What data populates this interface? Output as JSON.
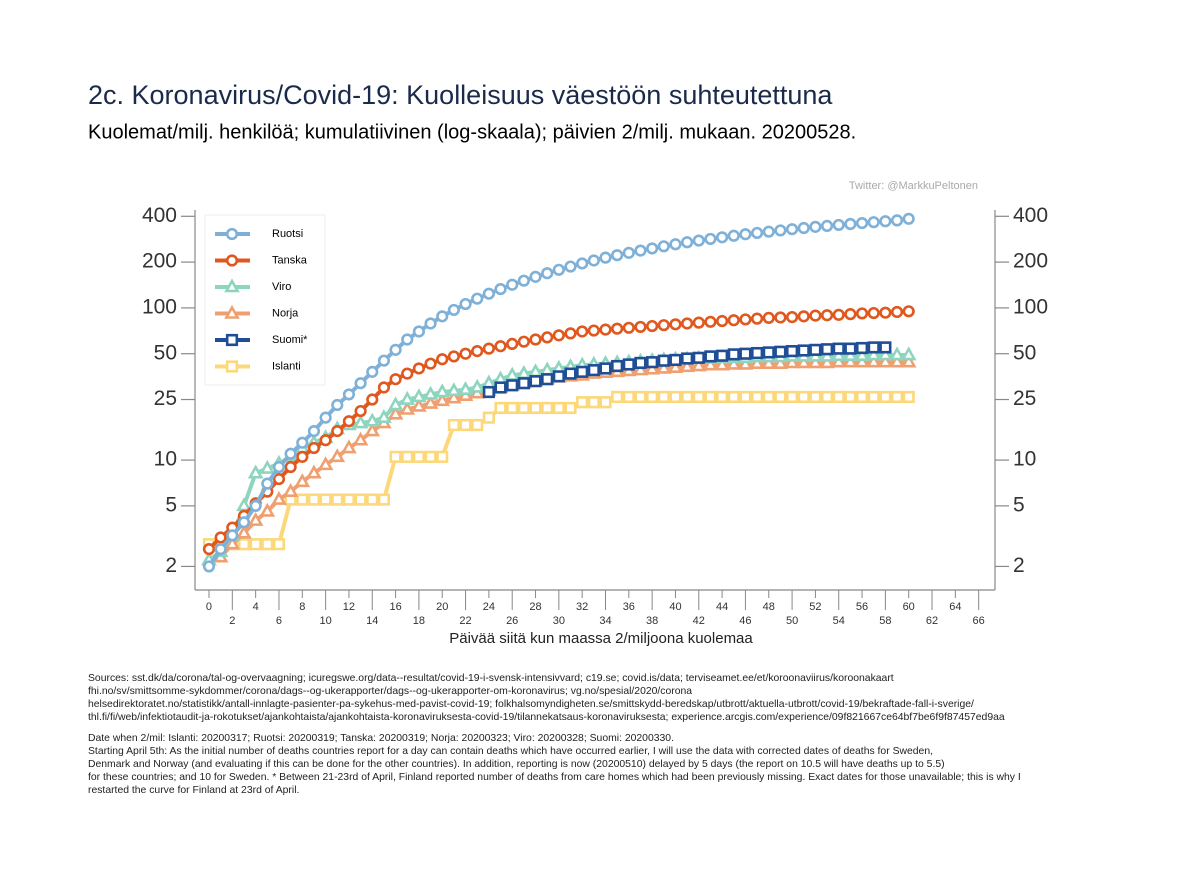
{
  "chart_data": {
    "type": "line",
    "title": "2c. Koronavirus/Covid-19: Kuolleisuus väestöön suhteutettuna",
    "subtitle": "Kuolemat/milj. henkilöä; kumulatiivinen (log-skaala); päivien 2/milj. mukaan. 20200528.",
    "credit": "Twitter: @MarkkuPeltonen",
    "x_label": "Päivää siitä kun maassa 2/miljoona kuolemaa",
    "notes": [
      "Sources: sst.dk/da/corona/tal-og-overvaagning; icuregswe.org/data--resultat/covid-19-i-svensk-intensivvard; c19.se; covid.is/data;  terviseamet.ee/et/koroonaviirus/koroonakaart",
      "fhi.no/sv/smittsomme-sykdommer/corona/dags--og-ukerapporter/dags--og-ukerapporter-om-koronavirus; vg.no/spesial/2020/corona",
      "helsedirektoratet.no/statistikk/antall-innlagte-pasienter-pa-sykehus-med-pavist-covid-19; folkhalsomyndigheten.se/smittskydd-beredskap/utbrott/aktuella-utbrott/covid-19/bekraftade-fall-i-sverige/",
      "thl.fi/fi/web/infektiotaudit-ja-rokotukset/ajankohtaista/ajankohtaista-koronaviruksesta-covid-19/tilannekatsaus-koronaviruksesta; experience.arcgis.com/experience/09f821667ce64bf7be6f9f87457ed9aa",
      "Date when 2/mil: Islanti: 20200317; Ruotsi: 20200319; Tanska: 20200319; Norja: 20200323; Viro: 20200328; Suomi: 20200330.",
      "Starting April 5th: As the initial number of deaths countries report for a day can contain deaths which have occurred earlier, I will use the data with corrected dates of deaths for Sweden,",
      "Denmark and Norway (and evaluating if this can be done for the other countries). In addition, reporting is now (20200510) delayed by 5 days (the report on 10.5 will have deaths up to 5.5)",
      "for these countries; and 10 for Sweden. * Between 21-23rd of April, Finland reported number of deaths from care homes which had been previously missing. Exact dates for those unavailable; this is why I",
      "restarted the curve for Finland at 23rd of April."
    ],
    "ylog": true,
    "grid": false,
    "legend": "upper left",
    "xlim": [
      -1.2,
      67.4
    ],
    "xticks": [
      0,
      2,
      4,
      6,
      8,
      10,
      12,
      14,
      16,
      18,
      20,
      22,
      24,
      26,
      28,
      30,
      32,
      34,
      36,
      38,
      40,
      42,
      44,
      46,
      48,
      50,
      52,
      54,
      56,
      58,
      60,
      62,
      64,
      66
    ],
    "ylim": [
      1.4,
      440
    ],
    "yticks": [
      2,
      5,
      10,
      25,
      50,
      100,
      200,
      400
    ],
    "x": [
      0,
      1,
      2,
      3,
      4,
      5,
      6,
      7,
      8,
      9,
      10,
      11,
      12,
      13,
      14,
      15,
      16,
      17,
      18,
      19,
      20,
      21,
      22,
      23,
      24,
      25,
      26,
      27,
      28,
      29,
      30,
      31,
      32,
      33,
      34,
      35,
      36,
      37,
      38,
      39,
      40,
      41,
      42,
      43,
      44,
      45,
      46,
      47,
      48,
      49,
      50,
      51,
      52,
      53,
      54,
      55,
      56,
      57,
      58,
      59,
      60
    ],
    "series": [
      {
        "name": "Ruotsi",
        "color": "#7fb1d8",
        "marker": "circle",
        "values": [
          2.0,
          2.6,
          3.2,
          3.9,
          5.0,
          7.0,
          9,
          11,
          13,
          15.5,
          19,
          23,
          27,
          32,
          38,
          45,
          53,
          62,
          70,
          79,
          88,
          97,
          106,
          115,
          124,
          133,
          142,
          151,
          160,
          169,
          178,
          187,
          196,
          205,
          214,
          222,
          230,
          238,
          246,
          254,
          262,
          270,
          277,
          284,
          291,
          298,
          305,
          311,
          317,
          323,
          329,
          335,
          341,
          346,
          351,
          356,
          361,
          366,
          371,
          376,
          385
        ]
      },
      {
        "name": "Tanska",
        "color": "#e0581e",
        "marker": "circle",
        "values": [
          2.6,
          3.1,
          3.6,
          4.3,
          5.2,
          6.2,
          7.5,
          9,
          10.5,
          12,
          13.5,
          15.5,
          18,
          21,
          25,
          30,
          34,
          37,
          40,
          43,
          46,
          48,
          50,
          52,
          54,
          56,
          58,
          60,
          62,
          64,
          66,
          68,
          70,
          71,
          72,
          73,
          74,
          75,
          76,
          77,
          78,
          79,
          80,
          81,
          82,
          83,
          84,
          85,
          86,
          86.5,
          87,
          88,
          89,
          89.5,
          90,
          91,
          92,
          92.5,
          93,
          94,
          95
        ]
      },
      {
        "name": "Viro",
        "color": "#8ed5c0",
        "marker": "triangle",
        "values": [
          2.2,
          2.5,
          3.2,
          5.0,
          8.2,
          8.8,
          9.5,
          10.5,
          12,
          13,
          14,
          16,
          17,
          17.5,
          18,
          19,
          23,
          25,
          26,
          27,
          28,
          28.5,
          29,
          30,
          32,
          34,
          36,
          37,
          38,
          39,
          40,
          41,
          42,
          42.5,
          43,
          43.5,
          44,
          44.5,
          45,
          45.5,
          46,
          46,
          46.5,
          46.5,
          47,
          47,
          47,
          47.5,
          47.5,
          47.5,
          48,
          48,
          48,
          48,
          48.5,
          48.5,
          48.5,
          49,
          49,
          49,
          49
        ]
      },
      {
        "name": "Norja",
        "color": "#f0a070",
        "marker": "triangle",
        "values": [
          2.2,
          2.3,
          2.8,
          3.3,
          4.0,
          4.6,
          5.5,
          6.2,
          7.2,
          8.2,
          9.3,
          10.5,
          12,
          13.5,
          15.5,
          17.5,
          20,
          21.5,
          22.5,
          23.5,
          24.5,
          25.5,
          26.5,
          27.5,
          28.5,
          30,
          31,
          32,
          33,
          34,
          35,
          35.5,
          36,
          37,
          37.5,
          38,
          38.5,
          39,
          39.5,
          40,
          40.5,
          41,
          41.5,
          42,
          42,
          42.5,
          42.5,
          43,
          43,
          43,
          43.5,
          43.5,
          43.5,
          43.5,
          44,
          44,
          44,
          44,
          44,
          44,
          44
        ]
      },
      {
        "name": "Suomi*",
        "color": "#1f4e96",
        "marker": "square",
        "values": [
          null,
          null,
          null,
          null,
          null,
          null,
          null,
          null,
          null,
          null,
          null,
          null,
          null,
          null,
          null,
          null,
          null,
          null,
          null,
          null,
          null,
          null,
          null,
          null,
          28,
          30,
          31,
          32,
          33,
          34,
          35.5,
          37,
          38,
          39,
          40,
          41.5,
          42.5,
          43.5,
          44,
          45,
          45.5,
          46.5,
          47,
          48,
          48.5,
          49.5,
          50,
          50.5,
          51,
          51.5,
          52,
          52.5,
          53,
          53.5,
          54,
          54,
          54.5,
          55,
          55,
          null,
          null
        ]
      },
      {
        "name": "Islanti",
        "color": "#fcd87a",
        "marker": "square",
        "values": [
          2.8,
          2.8,
          2.8,
          2.8,
          2.8,
          2.8,
          2.8,
          5.5,
          5.5,
          5.5,
          5.5,
          5.5,
          5.5,
          5.5,
          5.5,
          5.5,
          10.5,
          10.5,
          10.5,
          10.5,
          10.5,
          17,
          17,
          17,
          19,
          22,
          22,
          22,
          22,
          22,
          22,
          22,
          24,
          24,
          24,
          26,
          26,
          26,
          26,
          26,
          26,
          26,
          26,
          26,
          26,
          26,
          26,
          26,
          26,
          26,
          26,
          26,
          26,
          26,
          26,
          26,
          26,
          26,
          26,
          26,
          26
        ]
      }
    ]
  }
}
